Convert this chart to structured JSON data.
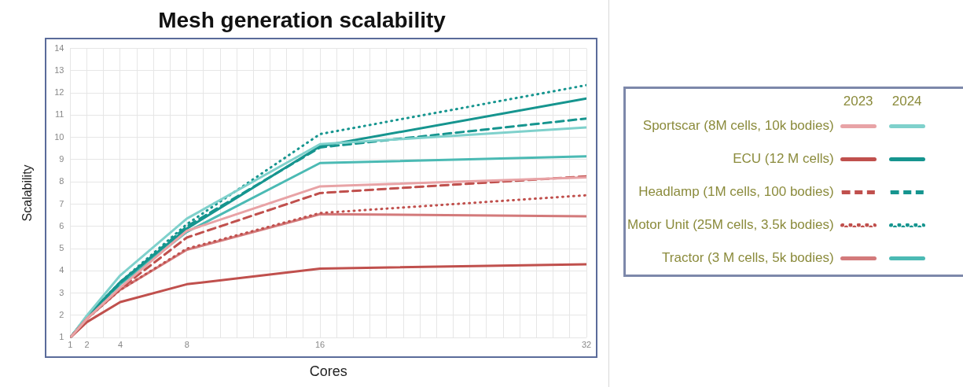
{
  "chart_data": {
    "type": "line",
    "title": "Mesh generation scalability",
    "xlabel": "Cores",
    "ylabel": "Scalability",
    "x": [
      1,
      2,
      4,
      8,
      16,
      32
    ],
    "xlim": [
      1,
      32
    ],
    "xticks": [
      1,
      2,
      {
        "value": 3,
        "label": null
      },
      4,
      {
        "value": 5,
        "label": null
      },
      {
        "value": 6,
        "label": null
      },
      {
        "value": 7,
        "label": null
      },
      8,
      {
        "value": 9,
        "label": null
      },
      {
        "value": 10,
        "label": null
      },
      {
        "value": 11,
        "label": null
      },
      {
        "value": 12,
        "label": null
      },
      {
        "value": 13,
        "label": null
      },
      {
        "value": 14,
        "label": null
      },
      {
        "value": 15,
        "label": null
      },
      16,
      {
        "value": 17,
        "label": null
      },
      {
        "value": 18,
        "label": null
      },
      {
        "value": 19,
        "label": null
      },
      {
        "value": 20,
        "label": null
      },
      {
        "value": 21,
        "label": null
      },
      {
        "value": 22,
        "label": null
      },
      {
        "value": 23,
        "label": null
      },
      {
        "value": 24,
        "label": null
      },
      {
        "value": 25,
        "label": null
      },
      {
        "value": 26,
        "label": null
      },
      {
        "value": 27,
        "label": null
      },
      {
        "value": 28,
        "label": null
      },
      {
        "value": 29,
        "label": null
      },
      {
        "value": 30,
        "label": null
      },
      {
        "value": 31,
        "label": null
      },
      32
    ],
    "ylim": [
      1,
      14
    ],
    "yticks": [
      1,
      2,
      3,
      4,
      5,
      6,
      7,
      8,
      9,
      10,
      11,
      12,
      13,
      14
    ],
    "grid": true,
    "legend": "right",
    "marker": "none",
    "annotations": [
      "2023",
      "2024"
    ],
    "series": [
      {
        "name": "Sportscar (8M cells, 10k bodies)",
        "color": "#e8a3a6",
        "line_style": "solid",
        "values": [
          1,
          1.85,
          3.25,
          5.8,
          7.8,
          8.2
        ]
      },
      {
        "name": "ECU (12 M cells)",
        "color": "#c0504d",
        "line_style": "solid",
        "values": [
          1,
          1.7,
          2.6,
          3.4,
          4.1,
          4.3
        ]
      },
      {
        "name": "Headlamp (1M cells, 100 bodies)",
        "color": "#c0504d",
        "line_style": "dashed",
        "values": [
          1,
          1.85,
          3.2,
          5.5,
          7.5,
          8.25
        ]
      },
      {
        "name": "Motor Unit (25M cells, 3.5k bodies)",
        "color": "#c0504d",
        "line_style": "dotted",
        "values": [
          1,
          1.85,
          3.15,
          5,
          6.6,
          7.4
        ]
      },
      {
        "name": "Tractor (3 M cells, 5k bodies)",
        "color": "#d37a7b",
        "line_style": "solid",
        "values": [
          1,
          1.85,
          3.15,
          4.95,
          6.55,
          6.45
        ]
      },
      {
        "color": "#7fd1cc",
        "line_style": "solid",
        "values": [
          1,
          2,
          3.8,
          6.35,
          9.7,
          10.45
        ]
      },
      {
        "color": "#16958f",
        "line_style": "solid",
        "values": [
          1,
          1.95,
          3.5,
          5.9,
          9.6,
          11.75
        ]
      },
      {
        "color": "#16958f",
        "line_style": "dashed",
        "values": [
          1,
          1.95,
          3.45,
          6,
          9.55,
          10.85
        ]
      },
      {
        "color": "#16958f",
        "line_style": "dotted",
        "values": [
          1,
          1.95,
          3.5,
          6.1,
          10.15,
          12.35
        ]
      },
      {
        "color": "#4bbab4",
        "line_style": "solid",
        "values": [
          1,
          1.95,
          3.4,
          5.75,
          8.85,
          9.15
        ]
      }
    ]
  }
}
